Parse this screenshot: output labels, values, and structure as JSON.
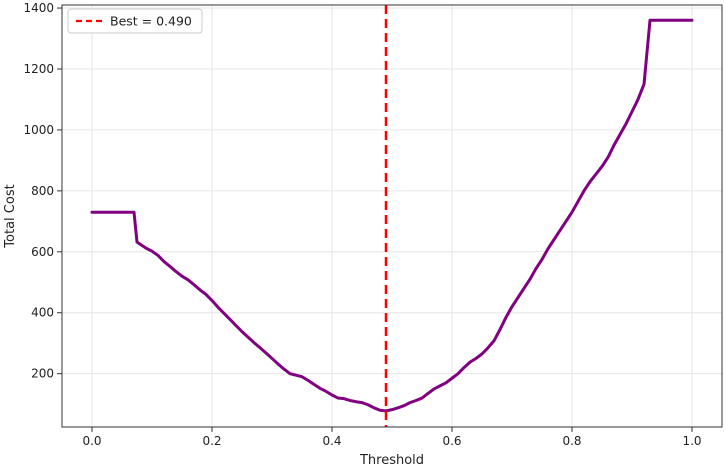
{
  "chart_data": {
    "type": "line",
    "xlabel": "Threshold",
    "ylabel": "Total Cost",
    "xlim": [
      -0.05,
      1.05
    ],
    "ylim": [
      25,
      1410
    ],
    "xticks": [
      0.0,
      0.2,
      0.4,
      0.6,
      0.8,
      1.0
    ],
    "xtick_labels": [
      "0.0",
      "0.2",
      "0.4",
      "0.6",
      "0.8",
      "1.0"
    ],
    "yticks": [
      200,
      400,
      600,
      800,
      1000,
      1200,
      1400
    ],
    "ytick_labels": [
      "200",
      "400",
      "600",
      "800",
      "1000",
      "1200",
      "1400"
    ],
    "grid": true,
    "legend_position": "top-left",
    "colors": {
      "line": "#800080",
      "best": "#ff0000"
    },
    "series": [
      {
        "x": [
          0.0,
          0.01,
          0.02,
          0.03,
          0.04,
          0.05,
          0.06,
          0.07,
          0.075,
          0.08,
          0.09,
          0.1,
          0.11,
          0.12,
          0.13,
          0.14,
          0.15,
          0.16,
          0.17,
          0.18,
          0.19,
          0.2,
          0.21,
          0.22,
          0.23,
          0.24,
          0.25,
          0.26,
          0.27,
          0.28,
          0.29,
          0.3,
          0.31,
          0.32,
          0.33,
          0.34,
          0.35,
          0.36,
          0.37,
          0.38,
          0.39,
          0.4,
          0.41,
          0.42,
          0.43,
          0.44,
          0.45,
          0.46,
          0.47,
          0.48,
          0.49,
          0.5,
          0.51,
          0.52,
          0.53,
          0.54,
          0.55,
          0.56,
          0.57,
          0.58,
          0.59,
          0.6,
          0.61,
          0.62,
          0.63,
          0.64,
          0.65,
          0.66,
          0.67,
          0.68,
          0.69,
          0.7,
          0.71,
          0.72,
          0.73,
          0.74,
          0.75,
          0.76,
          0.77,
          0.78,
          0.79,
          0.8,
          0.81,
          0.82,
          0.83,
          0.84,
          0.85,
          0.86,
          0.87,
          0.88,
          0.89,
          0.9,
          0.91,
          0.92,
          0.93,
          0.95,
          0.97,
          1.0
        ],
        "values": [
          730,
          730,
          730,
          730,
          730,
          730,
          730,
          730,
          632,
          625,
          612,
          602,
          588,
          568,
          552,
          535,
          520,
          508,
          492,
          475,
          460,
          440,
          418,
          398,
          378,
          358,
          338,
          320,
          302,
          285,
          268,
          250,
          232,
          215,
          200,
          195,
          190,
          178,
          165,
          152,
          142,
          130,
          120,
          118,
          112,
          108,
          105,
          98,
          88,
          80,
          78,
          82,
          88,
          95,
          105,
          112,
          120,
          135,
          150,
          160,
          170,
          185,
          200,
          220,
          238,
          250,
          265,
          285,
          308,
          345,
          385,
          420,
          450,
          480,
          510,
          545,
          575,
          610,
          640,
          670,
          700,
          730,
          765,
          800,
          830,
          855,
          880,
          910,
          950,
          985,
          1020,
          1060,
          1100,
          1150,
          1360,
          1360,
          1360,
          1360
        ]
      }
    ],
    "best": {
      "x": 0.49,
      "label": "Best = 0.490"
    }
  }
}
